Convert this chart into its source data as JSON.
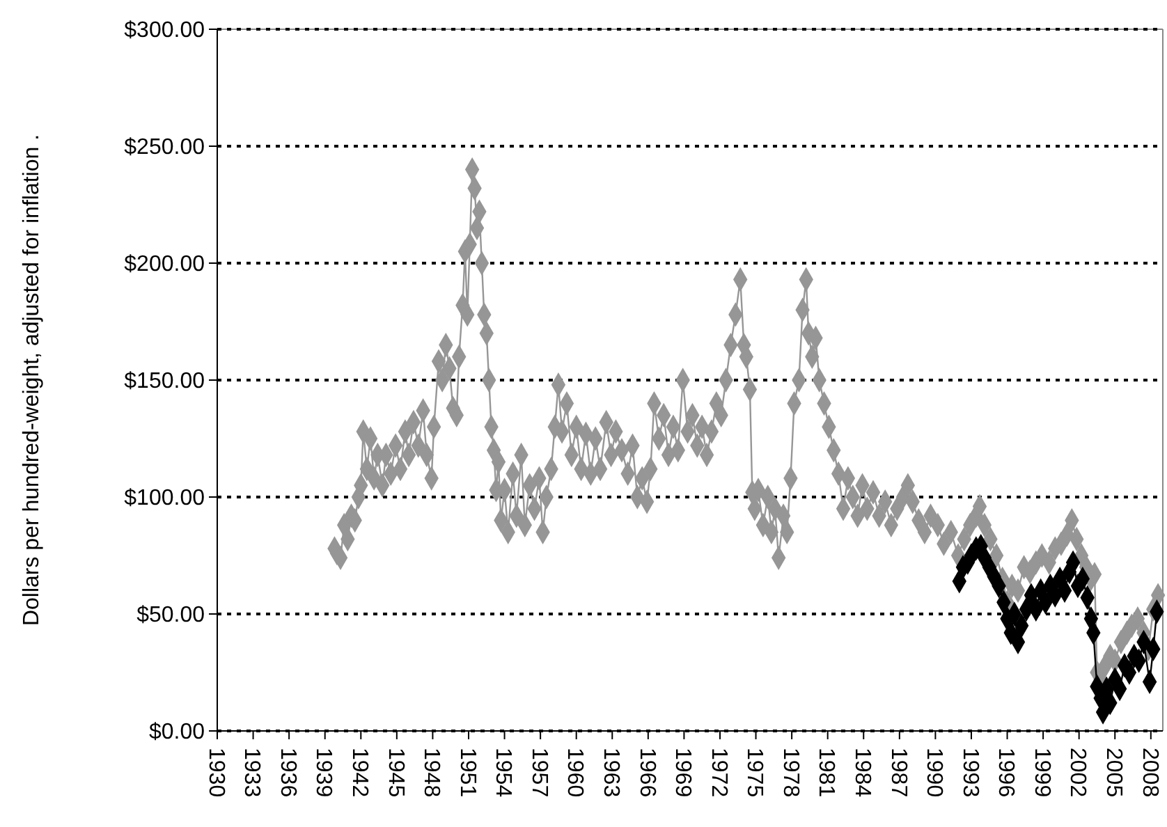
{
  "chart_data": {
    "type": "line",
    "ylabel": "Dollars per hundred-weight, adjusted for inflation .",
    "marker": "diamond",
    "line_style": "solid",
    "grid": "y",
    "xlim": [
      1930,
      2009
    ],
    "xticks": [
      1930,
      1933,
      1936,
      1939,
      1942,
      1945,
      1948,
      1951,
      1954,
      1957,
      1960,
      1963,
      1966,
      1969,
      1972,
      1975,
      1978,
      1981,
      1984,
      1987,
      1990,
      1993,
      1996,
      1999,
      2002,
      2005,
      2008
    ],
    "ylim": [
      0,
      300
    ],
    "yticks": [
      {
        "value": 0,
        "label": "$0.00"
      },
      {
        "value": 50,
        "label": "$50.00"
      },
      {
        "value": 100,
        "label": "$100.00"
      },
      {
        "value": 150,
        "label": "$150.00"
      },
      {
        "value": 200,
        "label": "$200.00"
      },
      {
        "value": 250,
        "label": "$250.00"
      },
      {
        "value": 300,
        "label": "$300.00"
      }
    ],
    "series": [
      {
        "color": "#969696",
        "x": [
          1939.8,
          1940.0,
          1940.3,
          1940.6,
          1940.9,
          1941.2,
          1941.5,
          1941.8,
          1942.0,
          1942.2,
          1942.5,
          1942.8,
          1943.1,
          1943.4,
          1943.8,
          1944.1,
          1944.5,
          1944.9,
          1945.3,
          1945.7,
          1946.0,
          1946.4,
          1946.8,
          1947.2,
          1947.5,
          1947.9,
          1948.1,
          1948.5,
          1948.8,
          1949.1,
          1949.4,
          1949.7,
          1950.0,
          1950.2,
          1950.5,
          1950.7,
          1950.9,
          1951.1,
          1951.3,
          1951.5,
          1951.7,
          1951.9,
          1952.1,
          1952.3,
          1952.5,
          1952.7,
          1952.9,
          1953.1,
          1953.3,
          1953.5,
          1953.7,
          1954.0,
          1954.3,
          1954.7,
          1955.0,
          1955.4,
          1955.7,
          1956.1,
          1956.5,
          1956.9,
          1957.2,
          1957.5,
          1957.9,
          1958.2,
          1958.5,
          1958.8,
          1959.2,
          1959.6,
          1960.0,
          1960.4,
          1960.8,
          1961.2,
          1961.6,
          1962.0,
          1962.5,
          1962.9,
          1963.3,
          1963.8,
          1964.3,
          1964.7,
          1965.1,
          1965.5,
          1965.9,
          1966.2,
          1966.5,
          1966.9,
          1967.3,
          1967.7,
          1968.1,
          1968.5,
          1968.9,
          1969.3,
          1969.7,
          1970.1,
          1970.5,
          1970.9,
          1971.3,
          1971.7,
          1972.1,
          1972.5,
          1972.9,
          1973.3,
          1973.7,
          1974.0,
          1974.2,
          1974.5,
          1974.7,
          1974.9,
          1975.2,
          1975.6,
          1976.0,
          1976.3,
          1976.6,
          1976.9,
          1977.3,
          1977.6,
          1977.9,
          1978.2,
          1978.6,
          1978.9,
          1979.2,
          1979.4,
          1979.7,
          1980.0,
          1980.3,
          1980.7,
          1981.1,
          1981.5,
          1981.9,
          1982.3,
          1982.7,
          1983.1,
          1983.5,
          1983.9,
          1984.3,
          1984.8,
          1985.3,
          1985.8,
          1986.3,
          1986.8,
          1987.3,
          1987.7,
          1988.1,
          1988.6,
          1989.1,
          1989.6,
          1990.2,
          1990.7,
          1991.3,
          1991.9,
          1992.4,
          1992.9,
          1993.4,
          1993.7,
          1994.1,
          1994.6,
          1995.1,
          1995.6,
          1996.0,
          1996.4,
          1996.9,
          1997.4,
          1997.9,
          1998.4,
          1998.9,
          1999.5,
          2000.0,
          2000.5,
          2001.0,
          2001.4,
          2001.8,
          2002.2,
          2002.6,
          2003.0,
          2003.3,
          2003.5,
          2003.8,
          2004.2,
          2004.6,
          2005.0,
          2005.5,
          2006.0,
          2006.4,
          2006.9,
          2007.4,
          2007.8,
          2008.2,
          2008.6
        ],
        "values": [
          78,
          76,
          74,
          88,
          82,
          92,
          90,
          100,
          105,
          128,
          112,
          125,
          108,
          118,
          105,
          118,
          110,
          122,
          112,
          128,
          118,
          132,
          122,
          137,
          118,
          108,
          130,
          158,
          150,
          165,
          155,
          138,
          135,
          160,
          182,
          205,
          178,
          208,
          240,
          232,
          215,
          222,
          200,
          178,
          170,
          150,
          130,
          120,
          103,
          115,
          90,
          103,
          85,
          110,
          92,
          118,
          88,
          105,
          95,
          108,
          85,
          100,
          112,
          130,
          148,
          128,
          140,
          118,
          130,
          112,
          127,
          110,
          125,
          112,
          132,
          118,
          128,
          120,
          110,
          122,
          100,
          108,
          98,
          112,
          140,
          125,
          135,
          118,
          130,
          120,
          150,
          128,
          135,
          122,
          130,
          118,
          128,
          140,
          135,
          150,
          165,
          178,
          193,
          165,
          160,
          146,
          102,
          95,
          103,
          88,
          100,
          85,
          95,
          74,
          92,
          85,
          108,
          140,
          150,
          180,
          193,
          170,
          160,
          168,
          150,
          140,
          130,
          120,
          110,
          95,
          108,
          100,
          92,
          105,
          95,
          102,
          92,
          98,
          88,
          95,
          100,
          105,
          98,
          90,
          85,
          92,
          88,
          80,
          85,
          75,
          82,
          88,
          92,
          96,
          88,
          82,
          75,
          65,
          55,
          62,
          60,
          70,
          68,
          72,
          75,
          72,
          78,
          80,
          84,
          90,
          82,
          75,
          70,
          65,
          67,
          25,
          22,
          28,
          32,
          30,
          38,
          42,
          45,
          48,
          42,
          35,
          52,
          58
        ]
      },
      {
        "color": "#000000",
        "x": [
          1992.0,
          1992.3,
          1992.7,
          1993.0,
          1993.4,
          1993.8,
          1994.1,
          1994.5,
          1994.9,
          1995.3,
          1995.7,
          1996.0,
          1996.3,
          1996.6,
          1996.9,
          1997.2,
          1997.6,
          1998.0,
          1998.4,
          1998.8,
          1999.2,
          1999.6,
          2000.0,
          2000.4,
          2000.8,
          2001.2,
          2001.5,
          2001.9,
          2002.3,
          2002.7,
          2003.0,
          2003.2,
          2003.5,
          2003.8,
          2004.0,
          2004.3,
          2004.6,
          2005.0,
          2005.4,
          2005.8,
          2006.2,
          2006.6,
          2007.0,
          2007.4,
          2007.9,
          2008.2,
          2008.5
        ],
        "values": [
          64,
          70,
          72,
          75,
          78,
          79,
          74,
          70,
          66,
          62,
          55,
          48,
          42,
          50,
          38,
          45,
          52,
          58,
          52,
          60,
          55,
          62,
          58,
          65,
          60,
          68,
          72,
          62,
          65,
          57,
          48,
          42,
          19,
          14,
          8,
          18,
          12,
          22,
          18,
          28,
          25,
          32,
          30,
          38,
          21,
          35,
          51
        ]
      }
    ]
  }
}
